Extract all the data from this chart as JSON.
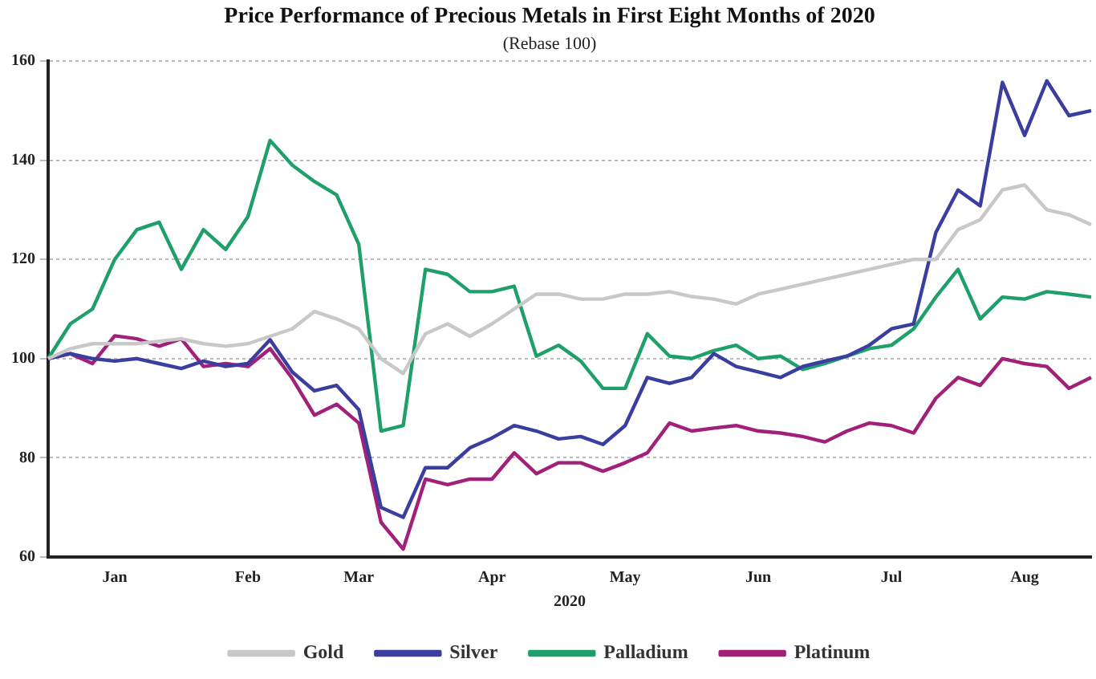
{
  "chart_data": {
    "type": "line",
    "title": "Price Performance of Precious Metals in First Eight Months of 2020",
    "subtitle": "(Rebase 100)",
    "xlabel": "2020",
    "categories": [
      null,
      null,
      null,
      "Jan",
      null,
      null,
      null,
      null,
      null,
      "Feb",
      null,
      null,
      null,
      null,
      "Mar",
      null,
      null,
      null,
      null,
      null,
      "Apr",
      null,
      null,
      null,
      null,
      null,
      "May",
      null,
      null,
      null,
      null,
      null,
      "Jun",
      null,
      null,
      null,
      null,
      null,
      "Jul",
      null,
      null,
      null,
      null,
      null,
      "Aug",
      null,
      null,
      null
    ],
    "series": [
      {
        "name": "Gold",
        "color": "#c8c8c8",
        "values": [
          100,
          102,
          103,
          103,
          103,
          103.5,
          104,
          103,
          102.5,
          103,
          104.5,
          106,
          109.5,
          108,
          106,
          100,
          97,
          105,
          107,
          104.5,
          107,
          110,
          113,
          113,
          112,
          112,
          113,
          113,
          113.5,
          112.5,
          112,
          111,
          113,
          114,
          115,
          116,
          117,
          118,
          119,
          120,
          120,
          126,
          128,
          134,
          135,
          130,
          129,
          127
        ]
      },
      {
        "name": "Silver",
        "color": "#3a3f9f",
        "values": [
          100,
          101,
          100,
          99.5,
          100,
          99,
          98,
          99.5,
          98.4,
          99,
          103.8,
          97.3,
          93.5,
          94.6,
          89.7,
          70,
          68,
          78,
          78,
          82,
          84,
          86.5,
          85.4,
          83.8,
          84.3,
          82.7,
          86.5,
          96.2,
          95,
          96.2,
          101,
          98.4,
          97.3,
          96.2,
          98.4,
          99.5,
          100.5,
          102.7,
          106,
          107,
          125.4,
          134,
          130.8,
          155.7,
          145,
          156,
          149,
          150
        ]
      },
      {
        "name": "Palladium",
        "color": "#1fa06a",
        "values": [
          100,
          107,
          110,
          120,
          126,
          127.5,
          118,
          126,
          122,
          128.6,
          144,
          139,
          135.7,
          133,
          123,
          85.4,
          86.5,
          118,
          117,
          113.5,
          113.5,
          114.6,
          100.5,
          102.7,
          99.5,
          94,
          94,
          105,
          100.5,
          100,
          101.6,
          102.7,
          100,
          100.5,
          97.8,
          99,
          100.5,
          102,
          102.7,
          106,
          112.4,
          118,
          108,
          112.4,
          112,
          113.5,
          113,
          112.4
        ]
      },
      {
        "name": "Platinum",
        "color": "#a0207a",
        "values": [
          100,
          101,
          99,
          104.6,
          104,
          102.5,
          104,
          98.4,
          99,
          98.4,
          102,
          96,
          88.6,
          90.8,
          87,
          67,
          61.6,
          75.7,
          74.6,
          75.7,
          75.7,
          81,
          76.8,
          79,
          79,
          77.3,
          79,
          81,
          87,
          85.4,
          86,
          86.5,
          85.4,
          85,
          84.3,
          83.2,
          85.4,
          87,
          86.5,
          85,
          92,
          96.2,
          94.6,
          100,
          99,
          98.4,
          94,
          96.2
        ]
      }
    ],
    "ylim": [
      60,
      160
    ],
    "yticks": [
      60,
      80,
      100,
      120,
      140,
      160
    ],
    "grid": "y",
    "legend": "bottom",
    "marker": "none",
    "line_style": "solid"
  }
}
